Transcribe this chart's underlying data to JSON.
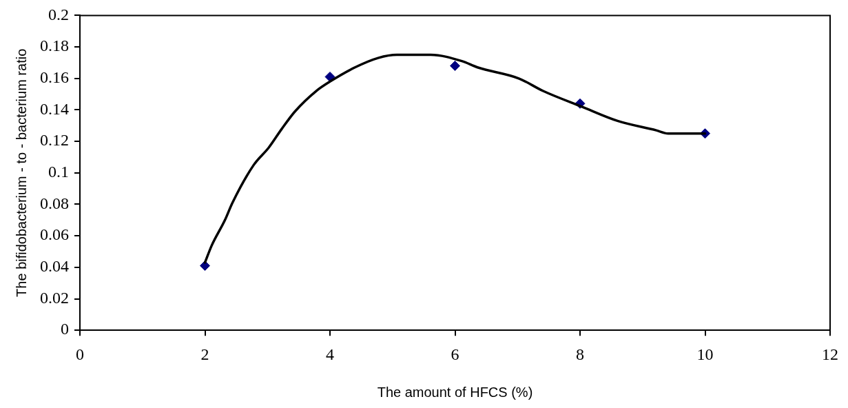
{
  "chart_data": {
    "type": "scatter",
    "xlabel": "The amount of HFCS (%)",
    "ylabel": "The bifidobacterium - to - bacterium ratio",
    "xlim": [
      0,
      12
    ],
    "xticks": [
      0,
      2,
      4,
      6,
      8,
      10,
      12
    ],
    "ylim": [
      0,
      0.2
    ],
    "yticks": [
      0,
      0.02,
      0.04,
      0.06,
      0.08,
      0.1,
      0.12,
      0.14,
      0.16,
      0.18,
      0.2
    ],
    "grid": false,
    "legend": false,
    "series": [
      {
        "type": "line",
        "color": "#000000",
        "marker": "none",
        "line_style": "solid",
        "x": [
          2,
          2.11,
          2.32,
          2.44,
          2.78,
          3.02,
          3.23,
          3.44,
          3.78,
          4.0,
          4.4,
          4.77,
          5.07,
          5.61,
          6.11,
          6.36,
          7.02,
          7.41,
          8.03,
          8.6,
          9.22,
          9.41,
          10
        ],
        "values": [
          0.043,
          0.054,
          0.07,
          0.081,
          0.105,
          0.116,
          0.128,
          0.139,
          0.152,
          0.158,
          0.167,
          0.173,
          0.175,
          0.175,
          0.171,
          0.167,
          0.16,
          0.152,
          0.142,
          0.133,
          0.127,
          0.125,
          0.125
        ]
      },
      {
        "type": "scatter",
        "color": "#000080",
        "marker": "diamond",
        "x": [
          2,
          4,
          6,
          8,
          10
        ],
        "values": [
          0.041,
          0.161,
          0.168,
          0.144,
          0.125
        ]
      }
    ]
  }
}
